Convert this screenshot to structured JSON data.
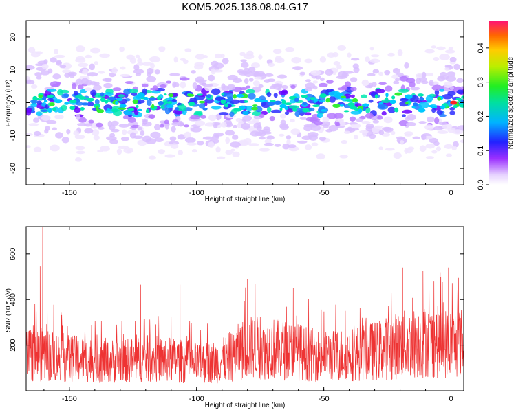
{
  "title": "KOM5.2025.136.08.04.G17",
  "chart_data": [
    {
      "type": "heatmap",
      "xlabel": "Height of straight line (km)",
      "ylabel": "Frequency (Hz)",
      "xlim": [
        -167,
        5
      ],
      "ylim": [
        -25,
        25
      ],
      "xticks": [
        -150,
        -100,
        -50,
        0
      ],
      "xtick_labels": [
        "-150",
        "-100",
        "-50",
        "0"
      ],
      "yticks": [
        -20,
        -10,
        0,
        10,
        20
      ],
      "ytick_labels": [
        "-20",
        "-10",
        "0",
        "10",
        "20"
      ],
      "description_values": {
        "band_center_hz": 0,
        "band_halfwidth_hz": 4,
        "peak_amplitude": 0.47,
        "peak_height_km": 1
      },
      "colorbar": {
        "label": "Normalized spectral amplitude",
        "range": [
          0,
          0.48
        ],
        "ticks": [
          0.0,
          0.1,
          0.2,
          0.3,
          0.4
        ],
        "tick_labels": [
          "0.0",
          "0.1",
          "0.2",
          "0.3",
          "0.4"
        ]
      },
      "grid": false
    },
    {
      "type": "line",
      "xlabel": "Height of straight line (km)",
      "ylabel": "SNR (10 * v/v)",
      "xlim": [
        -167,
        5
      ],
      "ylim": [
        0,
        720
      ],
      "xticks": [
        -150,
        -100,
        -50,
        0
      ],
      "xtick_labels": [
        "-150",
        "-100",
        "-50",
        "0"
      ],
      "yticks": [
        200,
        400,
        600
      ],
      "ytick_labels": [
        "200",
        "400",
        "600"
      ],
      "series": [
        {
          "color": "#ee3333",
          "x": [
            -167,
            -160,
            -150,
            -140,
            -130,
            -120,
            -110,
            -100,
            -90,
            -80,
            -70,
            -60,
            -50,
            -40,
            -30,
            -20,
            -10,
            0,
            5
          ],
          "mean": [
            150,
            160,
            140,
            135,
            130,
            140,
            135,
            120,
            130,
            190,
            185,
            170,
            150,
            160,
            175,
            200,
            215,
            210,
            210
          ],
          "peaks": [
            [
              -160.5,
              720
            ],
            [
              -161.5,
              545
            ],
            [
              -122,
              465
            ],
            [
              -106.5,
              465
            ],
            [
              -80,
              490
            ],
            [
              -77,
              470
            ],
            [
              -62,
              450
            ],
            [
              -19,
              540
            ],
            [
              -11,
              525
            ],
            [
              -4,
              500
            ],
            [
              -1,
              540
            ],
            [
              3,
              495
            ]
          ]
        }
      ],
      "grid": false
    }
  ]
}
